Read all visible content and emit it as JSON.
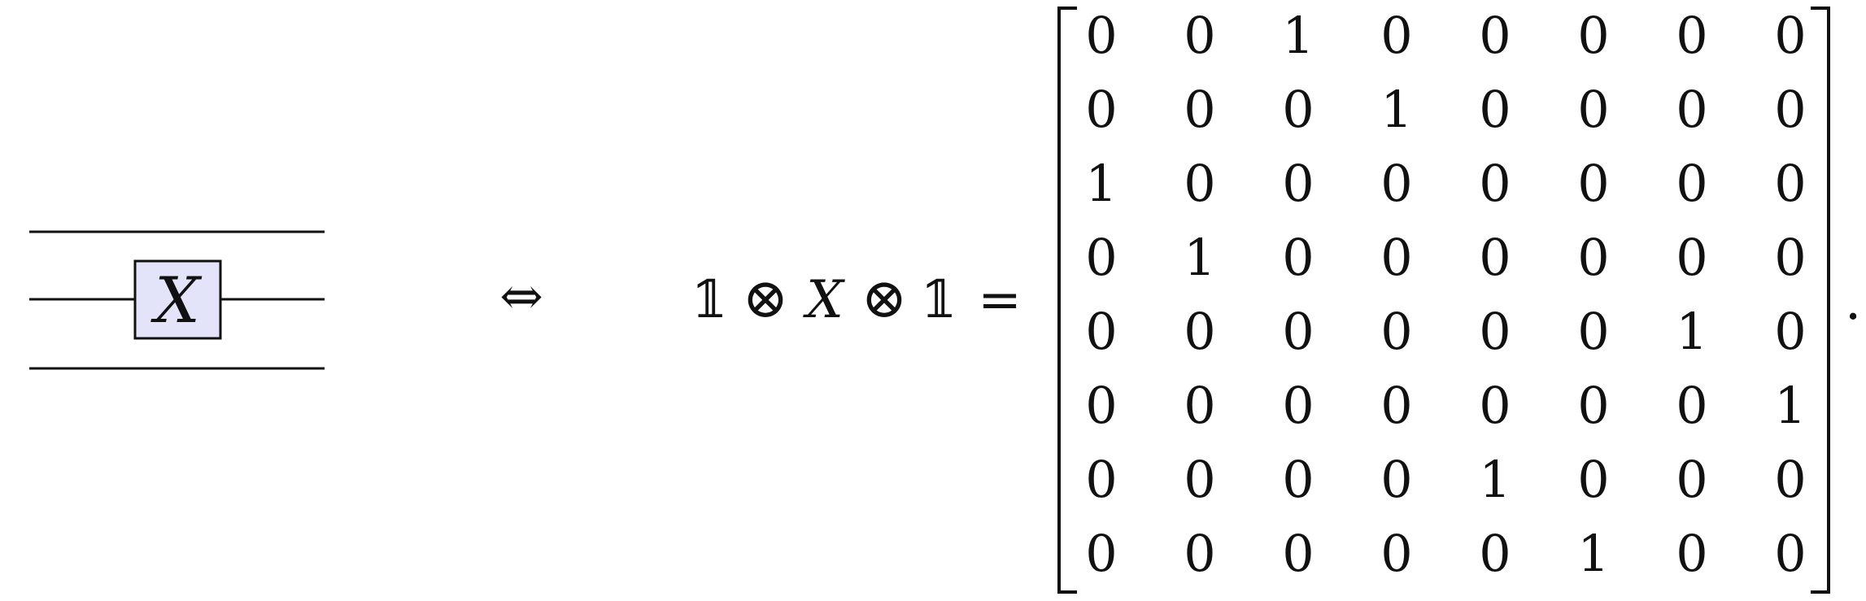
{
  "circuit": {
    "wire_count": 3,
    "gate_wire_index": 1,
    "gate_label": "X",
    "gate_fill": "#e3e4fa"
  },
  "equivalence_symbol": "⇔",
  "expression": {
    "identity_symbol": "𝟙",
    "tensor_symbol": "⊗",
    "middle_operator": "X",
    "equals_symbol": "="
  },
  "matrix": [
    [
      "0",
      "0",
      "1",
      "0",
      "0",
      "0",
      "0",
      "0"
    ],
    [
      "0",
      "0",
      "0",
      "1",
      "0",
      "0",
      "0",
      "0"
    ],
    [
      "1",
      "0",
      "0",
      "0",
      "0",
      "0",
      "0",
      "0"
    ],
    [
      "0",
      "1",
      "0",
      "0",
      "0",
      "0",
      "0",
      "0"
    ],
    [
      "0",
      "0",
      "0",
      "0",
      "0",
      "0",
      "1",
      "0"
    ],
    [
      "0",
      "0",
      "0",
      "0",
      "0",
      "0",
      "0",
      "1"
    ],
    [
      "0",
      "0",
      "0",
      "0",
      "1",
      "0",
      "0",
      "0"
    ],
    [
      "0",
      "0",
      "0",
      "0",
      "0",
      "1",
      "0",
      "0"
    ]
  ],
  "trailing_punctuation": "."
}
